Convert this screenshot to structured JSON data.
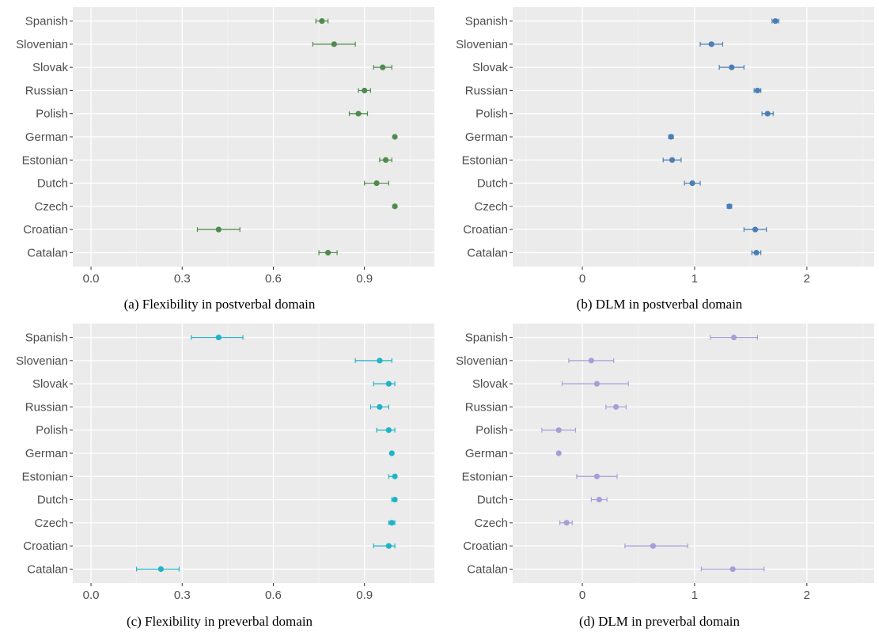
{
  "chart_data": [
    {
      "type": "scatter",
      "caption": "(a) Flexibility in postverbal domain",
      "categories": [
        "Spanish",
        "Slovenian",
        "Slovak",
        "Russian",
        "Polish",
        "German",
        "Estonian",
        "Dutch",
        "Czech",
        "Croatian",
        "Catalan"
      ],
      "values": [
        0.76,
        0.8,
        0.96,
        0.9,
        0.88,
        1.0,
        0.97,
        0.94,
        1.0,
        0.42,
        0.78
      ],
      "err_low": [
        0.74,
        0.73,
        0.93,
        0.88,
        0.85,
        1.0,
        0.95,
        0.9,
        1.0,
        0.35,
        0.75
      ],
      "err_high": [
        0.78,
        0.87,
        0.99,
        0.92,
        0.91,
        1.0,
        0.99,
        0.98,
        1.0,
        0.49,
        0.81
      ],
      "xticks": [
        "0.0",
        "0.3",
        "0.6",
        "0.9"
      ],
      "xtick_values": [
        0.0,
        0.3,
        0.6,
        0.9
      ],
      "xlim": [
        -0.06,
        1.13
      ],
      "color": "#4f8a4f"
    },
    {
      "type": "scatter",
      "caption": "(b) DLM in postverbal domain",
      "categories": [
        "Spanish",
        "Slovenian",
        "Slovak",
        "Russian",
        "Polish",
        "German",
        "Estonian",
        "Dutch",
        "Czech",
        "Croatian",
        "Catalan"
      ],
      "values": [
        1.72,
        1.15,
        1.33,
        1.56,
        1.65,
        0.79,
        0.8,
        0.98,
        1.31,
        1.54,
        1.55
      ],
      "err_low": [
        1.69,
        1.05,
        1.22,
        1.53,
        1.6,
        0.77,
        0.72,
        0.91,
        1.29,
        1.44,
        1.51
      ],
      "err_high": [
        1.75,
        1.25,
        1.44,
        1.59,
        1.7,
        0.81,
        0.88,
        1.05,
        1.33,
        1.64,
        1.59
      ],
      "xticks": [
        "0",
        "1",
        "2"
      ],
      "xtick_values": [
        0,
        1,
        2
      ],
      "xlim": [
        -0.62,
        2.6
      ],
      "color": "#4a7fb5"
    },
    {
      "type": "scatter",
      "caption": "(c) Flexibility in preverbal domain",
      "categories": [
        "Spanish",
        "Slovenian",
        "Slovak",
        "Russian",
        "Polish",
        "German",
        "Estonian",
        "Dutch",
        "Czech",
        "Croatian",
        "Catalan"
      ],
      "values": [
        0.42,
        0.95,
        0.98,
        0.95,
        0.98,
        0.99,
        1.0,
        1.0,
        0.99,
        0.98,
        0.23
      ],
      "err_low": [
        0.33,
        0.87,
        0.93,
        0.92,
        0.94,
        0.99,
        0.98,
        0.99,
        0.98,
        0.93,
        0.15
      ],
      "err_high": [
        0.5,
        0.99,
        1.0,
        0.98,
        1.0,
        0.99,
        1.0,
        1.0,
        1.0,
        1.0,
        0.29
      ],
      "xticks": [
        "0.0",
        "0.3",
        "0.6",
        "0.9"
      ],
      "xtick_values": [
        0.0,
        0.3,
        0.6,
        0.9
      ],
      "xlim": [
        -0.06,
        1.13
      ],
      "color": "#1fb3c9"
    },
    {
      "type": "scatter",
      "caption": "(d) DLM in preverbal domain",
      "categories": [
        "Spanish",
        "Slovenian",
        "Slovak",
        "Russian",
        "Polish",
        "German",
        "Estonian",
        "Dutch",
        "Czech",
        "Croatian",
        "Catalan"
      ],
      "values": [
        1.35,
        0.08,
        0.13,
        0.3,
        -0.21,
        -0.21,
        0.13,
        0.15,
        -0.14,
        0.63,
        1.34
      ],
      "err_low": [
        1.14,
        -0.12,
        -0.18,
        0.21,
        -0.36,
        -0.21,
        -0.05,
        0.08,
        -0.2,
        0.38,
        1.06
      ],
      "err_high": [
        1.56,
        0.28,
        0.41,
        0.39,
        -0.06,
        -0.21,
        0.31,
        0.22,
        -0.09,
        0.94,
        1.62
      ],
      "xticks": [
        "0",
        "1",
        "2"
      ],
      "xtick_values": [
        0,
        1,
        2
      ],
      "xlim": [
        -0.62,
        2.6
      ],
      "color": "#a59fd8"
    }
  ]
}
